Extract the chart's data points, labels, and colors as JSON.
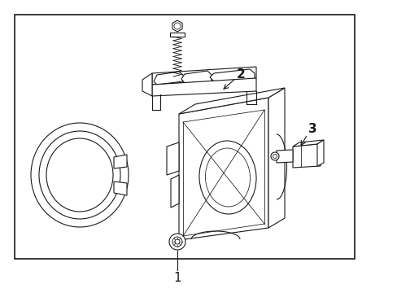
{
  "background_color": "#ffffff",
  "line_color": "#1a1a1a",
  "border_color": "#1a1a1a",
  "label1": "1",
  "label2": "2",
  "label3": "3",
  "figsize": [
    4.89,
    3.6
  ],
  "dpi": 100
}
